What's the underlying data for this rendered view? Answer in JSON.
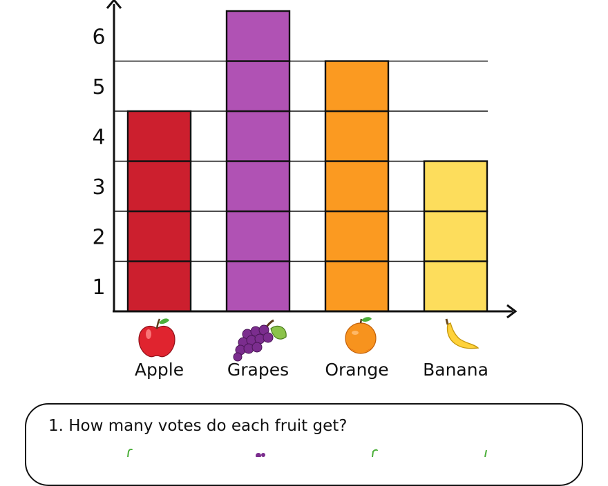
{
  "chart_data": {
    "type": "bar",
    "categories": [
      "Apple",
      "Grapes",
      "Orange",
      "Banana"
    ],
    "values": [
      4,
      6,
      5,
      3
    ],
    "yticks": [
      1,
      2,
      3,
      4,
      5,
      6
    ],
    "ylim": [
      0,
      6
    ],
    "grid": true,
    "colors": [
      "#cc1f2e",
      "#b052b4",
      "#fb9a21",
      "#fddd5c"
    ],
    "icons": [
      "apple-icon",
      "grapes-icon",
      "orange-icon",
      "banana-icon"
    ]
  },
  "question": {
    "text": "1. How many votes do each fruit get?"
  }
}
